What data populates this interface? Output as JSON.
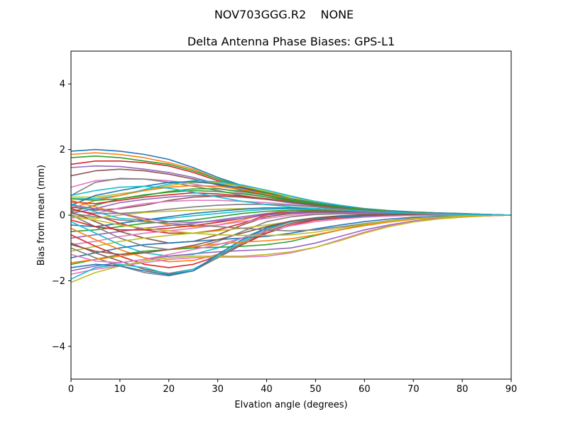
{
  "figure": {
    "suptitle": "NOV703GGG.R2    NONE"
  },
  "chart_data": {
    "type": "line",
    "title": "Delta Antenna Phase Biases: GPS-L1",
    "xlabel": "Elvation angle (degrees)",
    "ylabel": "Bias from mean (mm)",
    "xlim": [
      0,
      90
    ],
    "ylim": [
      -5,
      5
    ],
    "xticks": [
      0,
      10,
      20,
      30,
      40,
      50,
      60,
      70,
      80,
      90
    ],
    "yticks": [
      -4,
      -2,
      0,
      2,
      4
    ],
    "grid": false,
    "legend": "none",
    "x": [
      0,
      5,
      10,
      15,
      20,
      25,
      30,
      35,
      40,
      45,
      50,
      55,
      60,
      65,
      70,
      75,
      80,
      85,
      90
    ],
    "palette": [
      "#1f77b4",
      "#ff7f0e",
      "#2ca02c",
      "#d62728",
      "#9467bd",
      "#8c564b",
      "#e377c2",
      "#7f7f7f",
      "#bcbd22",
      "#17becf"
    ],
    "series": [
      {
        "values": [
          1.95,
          2.0,
          1.95,
          1.85,
          1.7,
          1.45,
          1.15,
          0.9,
          0.7,
          0.5,
          0.38,
          0.28,
          0.2,
          0.14,
          0.1,
          0.07,
          0.05,
          0.02,
          0.0
        ]
      },
      {
        "values": [
          1.85,
          1.9,
          1.85,
          1.75,
          1.6,
          1.4,
          1.1,
          0.85,
          0.65,
          0.48,
          0.36,
          0.27,
          0.19,
          0.13,
          0.09,
          0.06,
          0.04,
          0.02,
          0.0
        ]
      },
      {
        "values": [
          1.75,
          1.8,
          1.75,
          1.65,
          1.55,
          1.35,
          1.1,
          0.88,
          0.68,
          0.5,
          0.37,
          0.27,
          0.19,
          0.13,
          0.09,
          0.06,
          0.04,
          0.02,
          0.0
        ]
      },
      {
        "values": [
          1.55,
          1.65,
          1.65,
          1.6,
          1.5,
          1.3,
          1.05,
          0.85,
          0.65,
          0.48,
          0.35,
          0.26,
          0.18,
          0.12,
          0.08,
          0.06,
          0.04,
          0.02,
          0.0
        ]
      },
      {
        "values": [
          1.45,
          1.5,
          1.48,
          1.4,
          1.3,
          1.15,
          0.95,
          0.78,
          0.62,
          0.46,
          0.34,
          0.25,
          0.18,
          0.12,
          0.08,
          0.06,
          0.04,
          0.02,
          0.0
        ]
      },
      {
        "values": [
          1.2,
          1.35,
          1.4,
          1.35,
          1.25,
          1.1,
          0.92,
          0.75,
          0.6,
          0.45,
          0.33,
          0.24,
          0.17,
          0.12,
          0.08,
          0.05,
          0.03,
          0.01,
          0.0
        ]
      },
      {
        "values": [
          0.85,
          1.05,
          1.1,
          1.1,
          1.05,
          0.95,
          0.82,
          0.68,
          0.55,
          0.42,
          0.31,
          0.23,
          0.16,
          0.11,
          0.07,
          0.05,
          0.03,
          0.01,
          0.0
        ]
      },
      {
        "values": [
          0.6,
          1.0,
          1.12,
          1.1,
          1.0,
          0.88,
          0.75,
          0.6,
          0.48,
          0.37,
          0.28,
          0.21,
          0.15,
          0.1,
          0.07,
          0.05,
          0.03,
          0.01,
          0.0
        ]
      },
      {
        "values": [
          0.55,
          0.55,
          0.65,
          0.75,
          0.9,
          1.0,
          0.98,
          0.88,
          0.72,
          0.55,
          0.4,
          0.28,
          0.19,
          0.13,
          0.09,
          0.06,
          0.04,
          0.02,
          0.0
        ]
      },
      {
        "values": [
          0.5,
          0.5,
          0.6,
          0.78,
          0.95,
          1.05,
          1.02,
          0.92,
          0.76,
          0.58,
          0.42,
          0.3,
          0.2,
          0.14,
          0.09,
          0.06,
          0.04,
          0.02,
          0.0
        ]
      },
      {
        "values": [
          0.3,
          0.6,
          0.75,
          0.88,
          1.0,
          1.02,
          0.95,
          0.82,
          0.65,
          0.5,
          0.37,
          0.27,
          0.19,
          0.13,
          0.09,
          0.06,
          0.04,
          0.02,
          0.0
        ]
      },
      {
        "values": [
          0.2,
          0.45,
          0.6,
          0.75,
          0.85,
          0.9,
          0.88,
          0.78,
          0.64,
          0.48,
          0.35,
          0.25,
          0.18,
          0.12,
          0.08,
          0.05,
          0.03,
          0.01,
          0.0
        ]
      },
      {
        "values": [
          0.1,
          0.3,
          0.5,
          0.62,
          0.7,
          0.75,
          0.72,
          0.65,
          0.55,
          0.43,
          0.32,
          0.23,
          0.16,
          0.11,
          0.07,
          0.05,
          0.03,
          0.01,
          0.0
        ]
      },
      {
        "values": [
          0.4,
          0.35,
          0.45,
          0.55,
          0.62,
          0.68,
          0.65,
          0.58,
          0.5,
          0.4,
          0.3,
          0.22,
          0.15,
          0.1,
          0.07,
          0.05,
          0.03,
          0.01,
          0.0
        ]
      },
      {
        "values": [
          0.05,
          0.2,
          0.38,
          0.48,
          0.55,
          0.6,
          0.6,
          0.55,
          0.48,
          0.38,
          0.29,
          0.21,
          0.15,
          0.1,
          0.07,
          0.04,
          0.03,
          0.01,
          0.0
        ]
      },
      {
        "values": [
          0.25,
          0.15,
          0.2,
          0.3,
          0.45,
          0.55,
          0.58,
          0.55,
          0.48,
          0.4,
          0.3,
          0.22,
          0.15,
          0.1,
          0.07,
          0.05,
          0.03,
          0.01,
          0.0
        ]
      },
      {
        "values": [
          -0.1,
          0.05,
          0.22,
          0.35,
          0.42,
          0.45,
          0.45,
          0.42,
          0.38,
          0.32,
          0.25,
          0.18,
          0.13,
          0.09,
          0.06,
          0.04,
          0.02,
          0.01,
          0.0
        ]
      },
      {
        "values": [
          0.15,
          0.05,
          0.05,
          0.1,
          0.18,
          0.25,
          0.3,
          0.33,
          0.33,
          0.3,
          0.25,
          0.19,
          0.14,
          0.1,
          0.07,
          0.05,
          0.03,
          0.01,
          0.0
        ]
      },
      {
        "values": [
          0.0,
          -0.1,
          0.0,
          0.08,
          0.12,
          0.15,
          0.18,
          0.2,
          0.22,
          0.22,
          0.2,
          0.16,
          0.12,
          0.09,
          0.06,
          0.04,
          0.02,
          0.01,
          0.0
        ]
      },
      {
        "values": [
          0.35,
          0.1,
          -0.1,
          -0.15,
          -0.1,
          -0.02,
          0.05,
          0.12,
          0.18,
          0.2,
          0.18,
          0.15,
          0.12,
          0.09,
          0.06,
          0.04,
          0.02,
          0.01,
          0.0
        ]
      },
      {
        "values": [
          -0.3,
          -0.35,
          -0.25,
          -0.15,
          -0.05,
          0.05,
          0.12,
          0.18,
          0.22,
          0.22,
          0.2,
          0.16,
          0.12,
          0.09,
          0.06,
          0.04,
          0.02,
          0.01,
          0.0
        ]
      },
      {
        "values": [
          0.45,
          0.25,
          0.05,
          -0.15,
          -0.3,
          -0.35,
          -0.3,
          -0.15,
          0.05,
          0.15,
          0.15,
          0.13,
          0.1,
          0.07,
          0.05,
          0.03,
          0.02,
          0.01,
          0.0
        ]
      },
      {
        "values": [
          -0.5,
          -0.45,
          -0.35,
          -0.25,
          -0.2,
          -0.15,
          -0.05,
          0.05,
          0.12,
          0.15,
          0.15,
          0.12,
          0.1,
          0.07,
          0.05,
          0.03,
          0.02,
          0.01,
          0.0
        ]
      },
      {
        "values": [
          0.2,
          0.0,
          -0.25,
          -0.45,
          -0.55,
          -0.55,
          -0.45,
          -0.25,
          0.0,
          0.1,
          0.12,
          0.11,
          0.09,
          0.07,
          0.05,
          0.03,
          0.02,
          0.01,
          0.0
        ]
      },
      {
        "values": [
          -0.7,
          -0.6,
          -0.5,
          -0.4,
          -0.32,
          -0.25,
          -0.15,
          -0.05,
          0.05,
          0.1,
          0.1,
          0.09,
          0.07,
          0.05,
          0.04,
          0.03,
          0.02,
          0.01,
          0.0
        ]
      },
      {
        "values": [
          0.1,
          -0.2,
          -0.5,
          -0.7,
          -0.85,
          -0.8,
          -0.6,
          -0.3,
          -0.05,
          0.05,
          0.08,
          0.08,
          0.07,
          0.05,
          0.04,
          0.03,
          0.02,
          0.01,
          0.0
        ]
      },
      {
        "values": [
          -0.9,
          -0.8,
          -0.65,
          -0.55,
          -0.48,
          -0.4,
          -0.3,
          -0.2,
          -0.1,
          0.0,
          0.04,
          0.05,
          0.05,
          0.04,
          0.03,
          0.02,
          0.01,
          0.0,
          0.0
        ]
      },
      {
        "values": [
          0.0,
          -0.35,
          -0.7,
          -0.95,
          -1.05,
          -1.0,
          -0.8,
          -0.5,
          -0.2,
          -0.05,
          0.02,
          0.04,
          0.04,
          0.03,
          0.03,
          0.02,
          0.01,
          0.0,
          0.0
        ]
      },
      {
        "values": [
          -1.1,
          -0.95,
          -0.8,
          -0.7,
          -0.62,
          -0.55,
          -0.48,
          -0.4,
          -0.3,
          -0.2,
          -0.12,
          -0.06,
          -0.02,
          0.0,
          0.01,
          0.01,
          0.0,
          0.0,
          0.0
        ]
      },
      {
        "values": [
          -0.2,
          -0.55,
          -0.9,
          -1.15,
          -1.25,
          -1.2,
          -1.0,
          -0.7,
          -0.4,
          -0.2,
          -0.1,
          -0.04,
          0.0,
          0.01,
          0.01,
          0.01,
          0.0,
          0.0,
          0.0
        ]
      },
      {
        "values": [
          -1.3,
          -1.15,
          -1.0,
          -0.9,
          -0.85,
          -0.8,
          -0.75,
          -0.7,
          -0.65,
          -0.55,
          -0.42,
          -0.3,
          -0.2,
          -0.12,
          -0.07,
          -0.04,
          -0.02,
          -0.01,
          0.0
        ]
      },
      {
        "values": [
          -0.4,
          -0.75,
          -1.05,
          -1.3,
          -1.42,
          -1.38,
          -1.2,
          -0.9,
          -0.55,
          -0.3,
          -0.15,
          -0.08,
          -0.04,
          -0.02,
          -0.01,
          0.0,
          0.0,
          0.0,
          0.0
        ]
      },
      {
        "values": [
          -1.5,
          -1.35,
          -1.2,
          -1.1,
          -1.05,
          -1.0,
          -0.98,
          -0.95,
          -0.9,
          -0.8,
          -0.62,
          -0.45,
          -0.3,
          -0.2,
          -0.12,
          -0.07,
          -0.04,
          -0.02,
          0.0
        ]
      },
      {
        "values": [
          -0.6,
          -0.95,
          -1.25,
          -1.5,
          -1.6,
          -1.5,
          -1.25,
          -0.9,
          -0.55,
          -0.3,
          -0.15,
          -0.08,
          -0.04,
          -0.02,
          -0.01,
          0.0,
          0.0,
          0.0,
          0.0
        ]
      },
      {
        "values": [
          -1.7,
          -1.55,
          -1.45,
          -1.35,
          -1.25,
          -1.18,
          -1.12,
          -1.08,
          -1.05,
          -1.0,
          -0.85,
          -0.65,
          -0.45,
          -0.3,
          -0.18,
          -0.1,
          -0.05,
          -0.02,
          0.0
        ]
      },
      {
        "values": [
          -0.85,
          -1.15,
          -1.4,
          -1.65,
          -1.78,
          -1.65,
          -1.3,
          -0.9,
          -0.5,
          -0.25,
          -0.12,
          -0.06,
          -0.03,
          -0.01,
          0.0,
          0.0,
          0.0,
          0.0,
          0.0
        ]
      },
      {
        "values": [
          -1.8,
          -1.65,
          -1.55,
          -1.45,
          -1.35,
          -1.3,
          -1.28,
          -1.28,
          -1.25,
          -1.15,
          -0.98,
          -0.75,
          -0.52,
          -0.33,
          -0.2,
          -0.11,
          -0.06,
          -0.02,
          0.0
        ]
      },
      {
        "values": [
          -1.0,
          -1.3,
          -1.55,
          -1.75,
          -1.85,
          -1.7,
          -1.3,
          -0.85,
          -0.45,
          -0.2,
          -0.1,
          -0.05,
          -0.02,
          -0.01,
          0.0,
          0.0,
          0.0,
          0.0,
          0.0
        ]
      },
      {
        "values": [
          -2.05,
          -1.75,
          -1.55,
          -1.4,
          -1.3,
          -1.25,
          -1.25,
          -1.25,
          -1.2,
          -1.12,
          -0.98,
          -0.78,
          -0.55,
          -0.35,
          -0.21,
          -0.12,
          -0.06,
          -0.02,
          0.0
        ]
      },
      {
        "values": [
          -1.95,
          -1.6,
          -1.5,
          -1.6,
          -1.8,
          -1.65,
          -1.25,
          -0.8,
          -0.4,
          -0.2,
          -0.1,
          -0.05,
          -0.02,
          -0.01,
          0.0,
          0.0,
          0.0,
          0.0,
          0.0
        ]
      },
      {
        "values": [
          -1.6,
          -1.5,
          -1.55,
          -1.7,
          -1.82,
          -1.7,
          -1.2,
          -0.75,
          -0.38,
          -0.18,
          -0.09,
          -0.04,
          -0.02,
          -0.01,
          0.0,
          0.0,
          0.0,
          0.0,
          0.0
        ]
      },
      {
        "values": [
          -1.45,
          -1.35,
          -1.25,
          -1.15,
          -1.05,
          -0.95,
          -0.88,
          -0.82,
          -0.78,
          -0.72,
          -0.6,
          -0.45,
          -0.32,
          -0.21,
          -0.13,
          -0.07,
          -0.04,
          -0.02,
          0.0
        ]
      },
      {
        "values": [
          0.5,
          0.45,
          0.5,
          0.6,
          0.72,
          0.8,
          0.8,
          0.72,
          0.6,
          0.47,
          0.35,
          0.25,
          0.17,
          0.11,
          0.07,
          0.05,
          0.03,
          0.01,
          0.0
        ]
      },
      {
        "values": [
          -0.15,
          -0.35,
          -0.45,
          -0.45,
          -0.4,
          -0.32,
          -0.22,
          -0.1,
          0.02,
          0.1,
          0.12,
          0.11,
          0.09,
          0.07,
          0.05,
          0.03,
          0.02,
          0.01,
          0.0
        ]
      },
      {
        "values": [
          0.3,
          0.2,
          0.05,
          -0.1,
          -0.2,
          -0.22,
          -0.18,
          -0.1,
          0.0,
          0.08,
          0.1,
          0.09,
          0.08,
          0.06,
          0.04,
          0.03,
          0.02,
          0.01,
          0.0
        ]
      },
      {
        "values": [
          -0.9,
          -1.1,
          -1.2,
          -1.15,
          -1.05,
          -0.92,
          -0.75,
          -0.55,
          -0.35,
          -0.18,
          -0.08,
          -0.02,
          0.01,
          0.02,
          0.02,
          0.01,
          0.01,
          0.0,
          0.0
        ]
      },
      {
        "values": [
          -1.2,
          -1.4,
          -1.45,
          -1.35,
          -1.2,
          -1.05,
          -0.9,
          -0.7,
          -0.5,
          -0.32,
          -0.2,
          -0.12,
          -0.06,
          -0.03,
          -0.01,
          0.0,
          0.0,
          0.0,
          0.0
        ]
      },
      {
        "values": [
          0.05,
          -0.05,
          -0.15,
          -0.2,
          -0.25,
          -0.3,
          -0.35,
          -0.4,
          -0.45,
          -0.48,
          -0.45,
          -0.36,
          -0.26,
          -0.17,
          -0.1,
          -0.06,
          -0.03,
          -0.01,
          0.0
        ]
      },
      {
        "values": [
          -0.05,
          -0.15,
          -0.3,
          -0.4,
          -0.48,
          -0.55,
          -0.6,
          -0.62,
          -0.62,
          -0.6,
          -0.52,
          -0.4,
          -0.28,
          -0.18,
          -0.11,
          -0.06,
          -0.03,
          -0.01,
          0.0
        ]
      },
      {
        "values": [
          0.6,
          0.75,
          0.85,
          0.88,
          0.82,
          0.7,
          0.55,
          0.42,
          0.32,
          0.25,
          0.2,
          0.16,
          0.12,
          0.09,
          0.06,
          0.04,
          0.02,
          0.01,
          0.0
        ]
      }
    ]
  }
}
